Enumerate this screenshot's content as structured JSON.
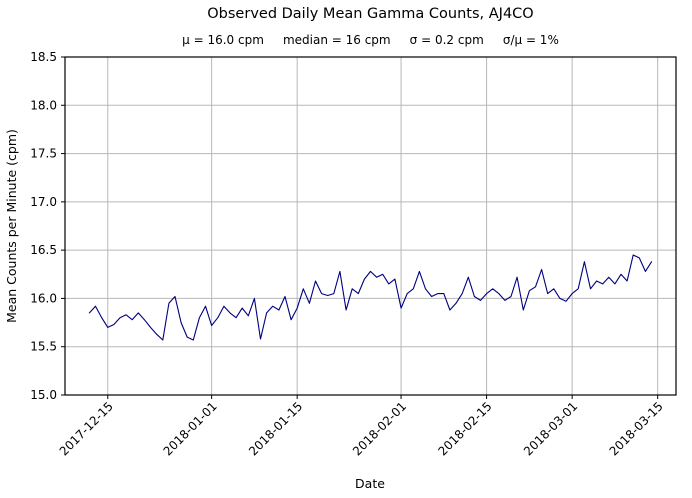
{
  "chart_data": {
    "type": "line",
    "title": "Observed Daily Mean Gamma Counts, AJ4CO",
    "subtitle": "μ = 16.0 cpm     median = 16 cpm     σ = 0.2 cpm     σ/μ = 1%",
    "stats": {
      "mu": "16.0 cpm",
      "median": "16 cpm",
      "sigma": "0.2 cpm",
      "sigma_over_mu": "1%"
    },
    "xlabel": "Date",
    "ylabel": "Mean Counts per Minute (cpm)",
    "ylim": [
      15.0,
      18.5
    ],
    "yticks": [
      15.0,
      15.5,
      16.0,
      16.5,
      17.0,
      17.5,
      18.0,
      18.5
    ],
    "x_start_date": "2017-12-12",
    "cadence": "daily",
    "xlim_day_index": [
      -4,
      96
    ],
    "xticks": [
      {
        "day": 3,
        "label": "2017-12-15"
      },
      {
        "day": 20,
        "label": "2018-01-01"
      },
      {
        "day": 34,
        "label": "2018-01-15"
      },
      {
        "day": 51,
        "label": "2018-02-01"
      },
      {
        "day": 65,
        "label": "2018-02-15"
      },
      {
        "day": 79,
        "label": "2018-03-01"
      },
      {
        "day": 93,
        "label": "2018-03-15"
      }
    ],
    "line_color": "#000080",
    "grid": true,
    "grid_color": "#b8b8b8",
    "values": [
      15.85,
      15.92,
      15.8,
      15.7,
      15.73,
      15.8,
      15.83,
      15.78,
      15.85,
      15.78,
      15.7,
      15.63,
      15.57,
      15.95,
      16.02,
      15.75,
      15.6,
      15.57,
      15.8,
      15.92,
      15.72,
      15.8,
      15.92,
      15.85,
      15.8,
      15.9,
      15.82,
      16.0,
      15.58,
      15.85,
      15.92,
      15.88,
      16.02,
      15.78,
      15.9,
      16.1,
      15.95,
      16.18,
      16.05,
      16.03,
      16.05,
      16.28,
      15.88,
      16.1,
      16.05,
      16.2,
      16.28,
      16.22,
      16.25,
      16.15,
      16.2,
      15.9,
      16.05,
      16.1,
      16.28,
      16.1,
      16.02,
      16.05,
      16.05,
      15.88,
      15.95,
      16.05,
      16.22,
      16.02,
      15.98,
      16.05,
      16.1,
      16.05,
      15.98,
      16.02,
      16.22,
      15.88,
      16.08,
      16.12,
      16.3,
      16.05,
      16.1,
      16.0,
      15.97,
      16.05,
      16.1,
      16.38,
      16.1,
      16.18,
      16.15,
      16.22,
      16.15,
      16.25,
      16.18,
      16.45,
      16.42,
      16.28,
      16.38
    ]
  }
}
